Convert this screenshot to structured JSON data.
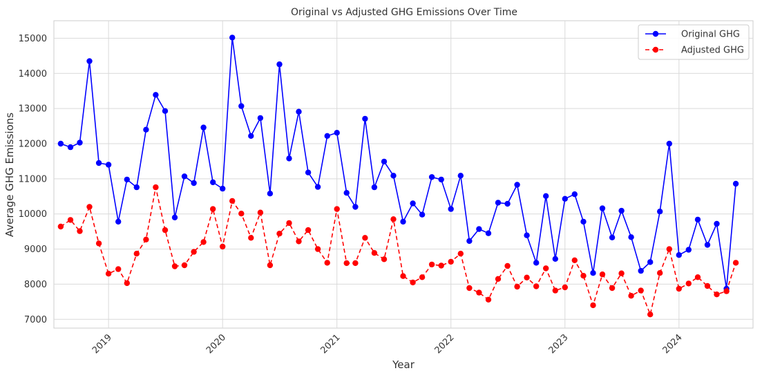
{
  "chart_data": {
    "type": "line",
    "title": "Original vs Adjusted GHG Emissions Over Time",
    "xlabel": "Year",
    "ylabel": "Average GHG Emissions",
    "x_ticks": [
      "2019",
      "2020",
      "2021",
      "2022",
      "2023",
      "2024"
    ],
    "y_ticks": [
      7000,
      8000,
      9000,
      10000,
      11000,
      12000,
      13000,
      14000,
      15000
    ],
    "ylim": [
      6750,
      15500
    ],
    "xlim": [
      "2018-07-10",
      "2024-08-25"
    ],
    "grid": true,
    "legend_position": "top-right",
    "x": [
      "2018-08",
      "2018-09",
      "2018-10",
      "2018-11",
      "2018-12",
      "2019-01",
      "2019-02",
      "2019-03",
      "2019-04",
      "2019-05",
      "2019-06",
      "2019-07",
      "2019-08",
      "2019-09",
      "2019-10",
      "2019-11",
      "2019-12",
      "2020-01",
      "2020-02",
      "2020-03",
      "2020-04",
      "2020-05",
      "2020-06",
      "2020-07",
      "2020-08",
      "2020-09",
      "2020-10",
      "2020-11",
      "2020-12",
      "2021-01",
      "2021-02",
      "2021-03",
      "2021-04",
      "2021-05",
      "2021-06",
      "2021-07",
      "2021-08",
      "2021-09",
      "2021-10",
      "2021-11",
      "2021-12",
      "2022-01",
      "2022-02",
      "2022-03",
      "2022-04",
      "2022-05",
      "2022-06",
      "2022-07",
      "2022-08",
      "2022-09",
      "2022-10",
      "2022-11",
      "2022-12",
      "2023-01",
      "2023-02",
      "2023-03",
      "2023-04",
      "2023-05",
      "2023-06",
      "2023-07",
      "2023-08",
      "2023-09",
      "2023-10",
      "2023-11",
      "2023-12",
      "2024-01",
      "2024-02",
      "2024-03",
      "2024-04",
      "2024-05",
      "2024-06",
      "2024-07"
    ],
    "series": [
      {
        "name": "Original GHG",
        "color": "#0000ff",
        "style": "solid",
        "values": [
          12000,
          11900,
          12030,
          14350,
          11450,
          11400,
          9780,
          10980,
          10760,
          12400,
          13390,
          12930,
          9900,
          11070,
          10880,
          12460,
          10900,
          10720,
          15020,
          13070,
          12220,
          12730,
          10580,
          14260,
          11580,
          12910,
          11180,
          10770,
          12220,
          12310,
          10600,
          10200,
          12710,
          10760,
          11490,
          11090,
          9780,
          10300,
          9980,
          11050,
          10980,
          10140,
          11090,
          9230,
          9570,
          9450,
          10320,
          10290,
          10830,
          9390,
          8610,
          10510,
          8720,
          10430,
          10560,
          9780,
          8320,
          10160,
          9330,
          10090,
          9340,
          8380,
          8630,
          10070,
          12000,
          8830,
          8980,
          9840,
          9120,
          9720,
          7870,
          10860
        ]
      },
      {
        "name": "Adjusted GHG",
        "color": "#ff0000",
        "style": "dashed",
        "values": [
          9640,
          9830,
          9510,
          10200,
          9160,
          8300,
          8430,
          8030,
          8870,
          9270,
          10760,
          9540,
          8510,
          8540,
          8920,
          9200,
          10140,
          9070,
          10370,
          10010,
          9320,
          10040,
          8540,
          9440,
          9740,
          9220,
          9540,
          9000,
          8610,
          10140,
          8600,
          8600,
          9320,
          8890,
          8710,
          9850,
          8230,
          8050,
          8200,
          8560,
          8530,
          8640,
          8870,
          7890,
          7760,
          7560,
          8150,
          8520,
          7930,
          8190,
          7940,
          8450,
          7820,
          7910,
          8680,
          8240,
          7400,
          8280,
          7890,
          8310,
          7670,
          7820,
          7140,
          8320,
          9000,
          7870,
          8020,
          8200,
          7950,
          7710,
          7800,
          8610
        ]
      }
    ]
  }
}
